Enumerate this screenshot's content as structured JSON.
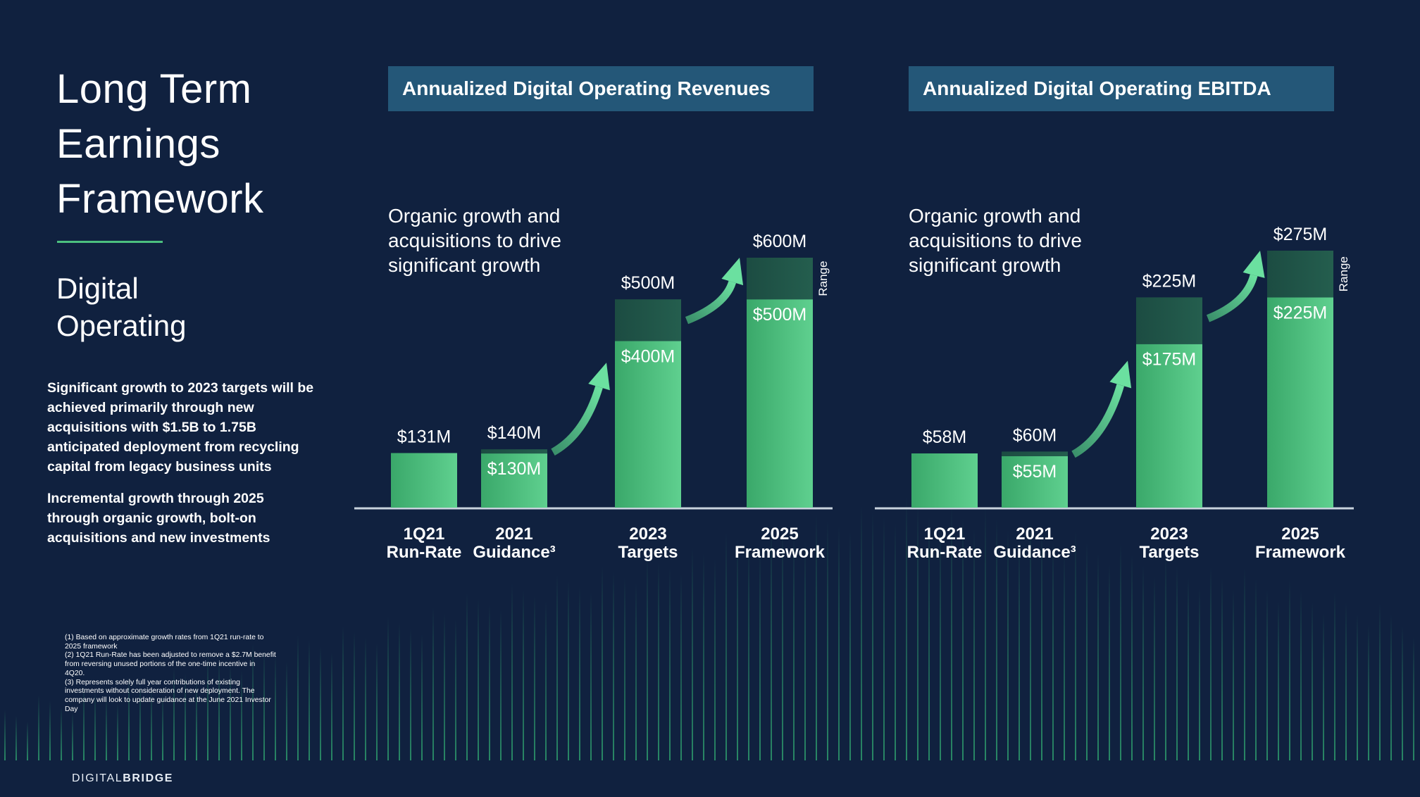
{
  "slide": {
    "title_lines": [
      "Long Term",
      "Earnings",
      "Framework"
    ],
    "subtitle_lines": [
      "Digital",
      "Operating"
    ],
    "paragraphs": [
      "Significant growth to 2023 targets will be achieved primarily through new acquisitions with $1.5B to 1.75B anticipated deployment from recycling capital from legacy business units",
      "Incremental growth through 2025 through organic growth, bolt-on acquisitions and new investments"
    ],
    "footnotes": [
      "(1) Based on approximate growth rates from 1Q21 run-rate to 2025 framework",
      "(2) 1Q21 Run-Rate has been adjusted to remove a $2.7M benefit from reversing unused portions of the one-time incentive in 4Q20.",
      "(3) Represents solely full year contributions of existing investments without consideration of new deployment. The company will look to update guidance at the June 2021 Investor Day"
    ],
    "logo_prefix": "DIGITAL",
    "logo_suffix": "BRIDGE"
  },
  "colors": {
    "background": "#10213f",
    "header": "#245778",
    "bar_base": "#4cc07f",
    "bar_range": "#1f5a4a",
    "axis": "#c9d3de"
  },
  "chart_data": [
    {
      "type": "bar",
      "title": "Annualized Digital Operating Revenues",
      "note_lines": [
        "Organic growth and",
        "acquisitions to drive",
        "significant growth"
      ],
      "categories": [
        "1Q21|Run-Rate",
        "2021|Guidance³",
        "2023|Targets",
        "2025|Framework"
      ],
      "series": [
        {
          "values": [
            131,
            130,
            400,
            500
          ]
        },
        {
          "values": [
            0,
            10,
            100,
            100
          ]
        }
      ],
      "top_labels": [
        "$131M",
        "$140M",
        "$500M",
        "$600M"
      ],
      "inner_labels": [
        "",
        "$130M",
        "$400M",
        "$500M"
      ],
      "range_label": "Range",
      "unit": "$M",
      "ylim": [
        0,
        600
      ]
    },
    {
      "type": "bar",
      "title": "Annualized Digital Operating EBITDA",
      "note_lines": [
        "Organic growth and",
        "acquisitions to drive",
        "significant growth"
      ],
      "categories": [
        "1Q21|Run-Rate",
        "2021|Guidance³",
        "2023|Targets",
        "2025|Framework"
      ],
      "series": [
        {
          "values": [
            58,
            55,
            175,
            225
          ]
        },
        {
          "values": [
            0,
            5,
            50,
            50
          ]
        }
      ],
      "top_labels": [
        "$58M",
        "$60M",
        "$225M",
        "$275M"
      ],
      "inner_labels": [
        "",
        "$55M",
        "$175M",
        "$225M"
      ],
      "range_label": "Range",
      "unit": "$M",
      "ylim": [
        0,
        275
      ]
    }
  ]
}
